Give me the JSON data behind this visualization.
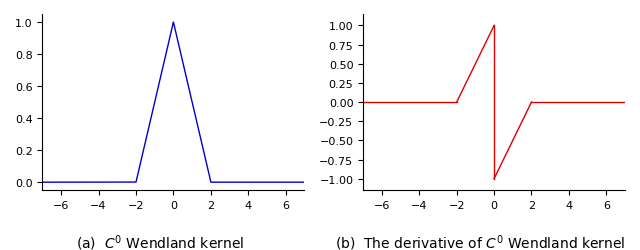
{
  "xlim": [
    -7,
    7
  ],
  "ylim_left": [
    -0.05,
    1.05
  ],
  "ylim_right": [
    -1.15,
    1.15
  ],
  "xticks": [
    -6,
    -4,
    -2,
    0,
    2,
    4,
    6
  ],
  "yticks_left": [
    0.0,
    0.2,
    0.4,
    0.6,
    0.8,
    1.0
  ],
  "yticks_right": [
    -1.0,
    -0.75,
    -0.5,
    -0.25,
    0.0,
    0.25,
    0.5,
    0.75,
    1.0
  ],
  "line_color_left": "#0000cc",
  "line_color_right": "#dd0000",
  "support": 2.0,
  "caption_left": "(a)  $C^0$ Wendland kernel",
  "caption_right": "(b)  The derivative of $C^0$ Wendland kernel",
  "caption_fontsize": 10,
  "figsize": [
    6.4,
    2.51
  ],
  "dpi": 100
}
